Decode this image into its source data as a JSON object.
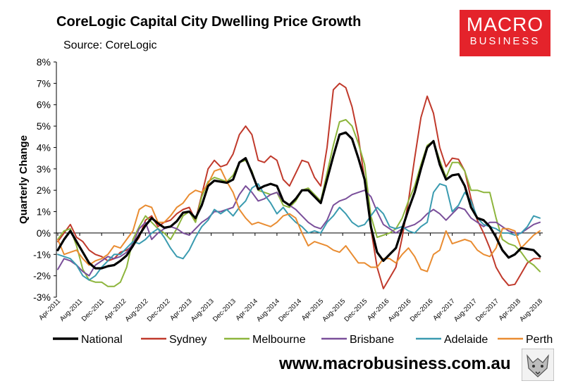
{
  "title": "CoreLogic Capital City Dwelling Price Growth",
  "subtitle": "Source: CoreLogic",
  "logo": {
    "line1": "MACRO",
    "line2": "BUSINESS"
  },
  "website": "www.macrobusiness.com.au",
  "colors": {
    "National": "#000000",
    "Sydney": "#c0392b",
    "Melbourne": "#8db53c",
    "Brisbane": "#7a4f9a",
    "Adelaide": "#3a9bb0",
    "Perth": "#e98c31",
    "logo_bg": "#e4232b"
  },
  "chart_data": {
    "type": "line",
    "title": "CoreLogic Capital City Dwelling Price Growth",
    "xlabel": "",
    "ylabel": "Quarterly Change",
    "ylim": [
      -3,
      8
    ],
    "y_ticks": [
      "-3%",
      "-2%",
      "-1%",
      "0%",
      "1%",
      "2%",
      "3%",
      "4%",
      "5%",
      "6%",
      "7%",
      "8%"
    ],
    "x_ticks": [
      "Apr-2011",
      "Aug-2011",
      "Dec-2011",
      "Apr-2012",
      "Aug-2012",
      "Dec-2012",
      "Apr-2013",
      "Aug-2013",
      "Dec-2013",
      "Apr-2014",
      "Aug-2014",
      "Dec-2014",
      "Apr-2015",
      "Aug-2015",
      "Dec-2015",
      "Apr-2016",
      "Aug-2016",
      "Dec-2016",
      "Apr-2017",
      "Aug-2017",
      "Dec-2017",
      "Apr-2018",
      "Aug-2018"
    ],
    "series": [
      {
        "name": "National",
        "values": [
          -0.8,
          -0.3,
          0.1,
          -0.4,
          -0.9,
          -1.4,
          -1.65,
          -1.65,
          -1.55,
          -1.5,
          -1.3,
          -1.05,
          -0.6,
          -0.1,
          0.35,
          0.7,
          0.45,
          0.25,
          0.3,
          0.55,
          0.95,
          1.0,
          0.7,
          1.3,
          2.2,
          2.45,
          2.4,
          2.35,
          2.5,
          3.3,
          3.5,
          2.8,
          2.05,
          2.2,
          2.3,
          2.2,
          1.5,
          1.3,
          1.6,
          2.0,
          2.0,
          1.7,
          1.4,
          2.5,
          3.6,
          4.6,
          4.7,
          4.4,
          3.5,
          2.5,
          0.3,
          -0.9,
          -1.3,
          -1.0,
          -0.7,
          0.2,
          1.1,
          1.9,
          3.0,
          4.0,
          4.3,
          3.2,
          2.5,
          2.7,
          2.75,
          2.2,
          1.2,
          0.7,
          0.6,
          0.3,
          -0.2,
          -0.8,
          -1.15,
          -1.0,
          -0.7,
          -0.75,
          -0.8,
          -1.1
        ]
      },
      {
        "name": "Sydney",
        "values": [
          -0.4,
          0.0,
          0.4,
          -0.2,
          -0.4,
          -0.8,
          -1.0,
          -1.1,
          -1.3,
          -1.2,
          -0.9,
          -0.8,
          -0.6,
          -0.2,
          0.6,
          0.8,
          0.3,
          0.5,
          0.6,
          0.9,
          1.1,
          1.2,
          0.6,
          1.8,
          3.0,
          3.4,
          3.1,
          3.2,
          3.7,
          4.6,
          5.0,
          4.6,
          3.4,
          3.3,
          3.6,
          3.4,
          2.5,
          2.2,
          2.8,
          3.4,
          3.3,
          2.6,
          2.2,
          4.0,
          6.7,
          7.0,
          6.8,
          5.9,
          4.5,
          2.5,
          0.2,
          -1.6,
          -2.6,
          -2.1,
          -1.6,
          -0.2,
          1.5,
          3.5,
          5.4,
          6.4,
          5.6,
          4.0,
          3.1,
          3.5,
          3.45,
          2.9,
          1.6,
          0.6,
          0.0,
          -0.7,
          -1.6,
          -2.1,
          -2.45,
          -2.4,
          -1.9,
          -1.4,
          -1.2,
          -1.2
        ]
      },
      {
        "name": "Melbourne",
        "values": [
          -0.3,
          0.1,
          0.2,
          -0.6,
          -1.7,
          -2.2,
          -2.3,
          -2.3,
          -2.5,
          -2.5,
          -2.3,
          -1.6,
          -0.3,
          0.3,
          0.8,
          0.5,
          0.2,
          0.0,
          -0.3,
          0.2,
          0.8,
          1.0,
          0.5,
          1.7,
          2.4,
          2.6,
          2.5,
          2.4,
          2.7,
          3.3,
          3.4,
          2.9,
          2.0,
          1.9,
          1.8,
          1.9,
          1.3,
          1.2,
          1.5,
          2.0,
          2.1,
          1.8,
          1.5,
          2.8,
          4.1,
          5.2,
          5.3,
          5.0,
          4.2,
          3.2,
          0.8,
          -0.2,
          -0.1,
          0.0,
          0.2,
          0.7,
          1.5,
          2.2,
          3.2,
          4.1,
          4.3,
          3.4,
          2.6,
          3.3,
          3.3,
          2.9,
          2.0,
          2.0,
          1.9,
          1.9,
          0.7,
          -0.3,
          -0.5,
          -0.6,
          -0.9,
          -1.3,
          -1.5,
          -1.8
        ]
      },
      {
        "name": "Brisbane",
        "values": [
          -1.7,
          -1.2,
          -1.3,
          -1.5,
          -1.8,
          -2.0,
          -1.5,
          -1.3,
          -1.1,
          -1.2,
          -1.1,
          -0.9,
          -0.5,
          0.2,
          0.5,
          -0.3,
          0.0,
          0.2,
          0.3,
          0.2,
          0.0,
          -0.1,
          0.2,
          0.5,
          0.7,
          1.0,
          1.0,
          1.1,
          1.2,
          1.8,
          2.2,
          1.9,
          1.5,
          1.6,
          1.8,
          1.9,
          1.5,
          1.3,
          1.1,
          0.8,
          0.5,
          0.3,
          0.2,
          0.6,
          1.3,
          1.5,
          1.6,
          1.8,
          1.9,
          2.0,
          1.7,
          1.0,
          0.4,
          0.2,
          0.0,
          0.2,
          0.3,
          0.4,
          0.6,
          0.9,
          1.1,
          0.9,
          0.6,
          0.9,
          1.2,
          1.1,
          0.7,
          0.5,
          0.3,
          0.5,
          0.5,
          0.3,
          0.1,
          0.0,
          0.0,
          0.2,
          0.4,
          0.5
        ]
      },
      {
        "name": "Adelaide",
        "values": [
          -1.0,
          -1.1,
          -1.2,
          -1.5,
          -2.0,
          -2.2,
          -2.0,
          -1.6,
          -1.3,
          -1.0,
          -1.0,
          -0.7,
          -0.4,
          -0.5,
          -0.3,
          0.0,
          0.2,
          -0.2,
          -0.7,
          -1.1,
          -1.2,
          -0.8,
          -0.2,
          0.3,
          0.6,
          1.1,
          0.9,
          1.1,
          0.8,
          1.2,
          1.5,
          2.1,
          2.3,
          1.8,
          1.4,
          0.9,
          1.2,
          0.8,
          0.5,
          0.3,
          0.0,
          0.1,
          0.0,
          0.5,
          0.8,
          1.2,
          0.9,
          0.5,
          0.3,
          0.4,
          0.8,
          1.2,
          0.9,
          0.3,
          0.2,
          0.3,
          0.1,
          0.0,
          0.3,
          0.5,
          1.9,
          2.3,
          2.2,
          1.0,
          1.3,
          1.9,
          1.5,
          0.7,
          0.4,
          0.3,
          0.2,
          0.0,
          0.0,
          -0.1,
          0.0,
          0.3,
          0.8,
          0.7
        ]
      },
      {
        "name": "Perth",
        "values": [
          -0.3,
          -1.0,
          -0.9,
          -0.8,
          -1.2,
          -1.5,
          -1.3,
          -1.2,
          -1.0,
          -0.6,
          -0.7,
          -0.3,
          0.1,
          1.1,
          1.3,
          1.2,
          0.5,
          0.5,
          0.8,
          1.2,
          1.4,
          1.8,
          2.0,
          1.9,
          2.3,
          2.9,
          3.0,
          2.4,
          1.9,
          1.1,
          0.7,
          0.4,
          0.5,
          0.4,
          0.3,
          0.5,
          0.8,
          0.9,
          0.7,
          0.0,
          -0.6,
          -0.4,
          -0.5,
          -0.6,
          -0.8,
          -0.9,
          -0.6,
          -1.0,
          -1.4,
          -1.4,
          -1.6,
          -1.6,
          -1.2,
          -1.2,
          -1.4,
          -1.0,
          -0.7,
          -1.1,
          -1.7,
          -1.8,
          -1.0,
          -0.8,
          0.1,
          -0.5,
          -0.4,
          -0.3,
          -0.4,
          -0.8,
          -1.0,
          -1.1,
          -0.7,
          0.2,
          0.2,
          0.1,
          -0.7,
          -0.4,
          -0.1,
          0.1
        ]
      }
    ]
  }
}
